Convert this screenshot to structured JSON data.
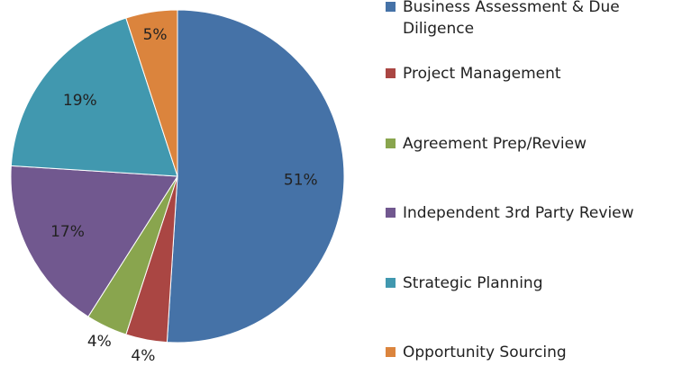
{
  "chart_data": {
    "type": "pie",
    "categories": [
      "Business Assessment & Due Diligence",
      "Project Management",
      "Agreement Prep/Review",
      "Independent 3rd Party Review",
      "Strategic Planning",
      "Opportunity Sourcing"
    ],
    "values": [
      51,
      4,
      4,
      17,
      19,
      5
    ],
    "value_labels": [
      "51%",
      "4%",
      "4%",
      "17%",
      "19%",
      "5%"
    ],
    "colors": [
      "#4572A7",
      "#AA4643",
      "#89A54E",
      "#71588F",
      "#4198AF",
      "#DB843D"
    ],
    "legend": "right"
  }
}
